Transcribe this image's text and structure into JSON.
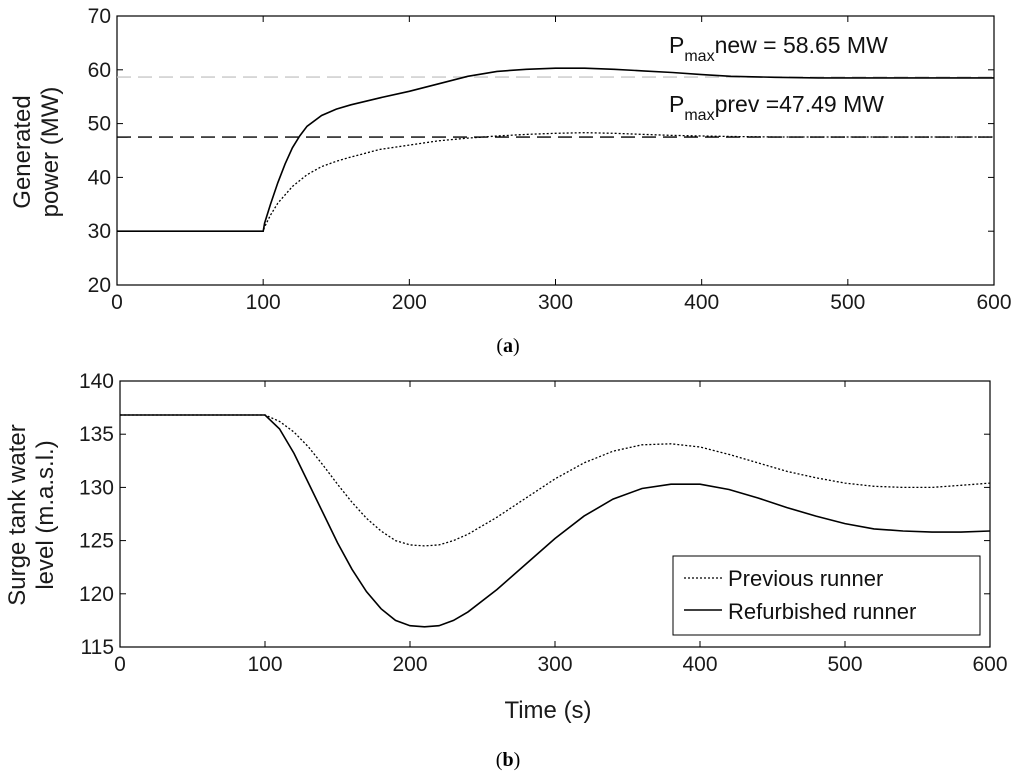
{
  "figure": {
    "panels": [
      {
        "label_open": "(",
        "label_letter": "a",
        "label_close": ")",
        "ylabel_lines": [
          "Generated",
          "power (MW)"
        ],
        "annotations": [
          {
            "main": "P",
            "sub": "max",
            "rest": "new = 58.65 MW"
          },
          {
            "main": "P",
            "sub": "max",
            "rest": "prev  =47.49 MW"
          }
        ]
      },
      {
        "label_open": "(",
        "label_letter": "b",
        "label_close": ")",
        "ylabel_lines": [
          "Surge tank water",
          "level (m.a.s.l.)"
        ],
        "xlabel": "Time (s)",
        "legend": [
          "Previous runner",
          "Refurbished runner"
        ]
      }
    ]
  },
  "chart_data": [
    {
      "type": "line",
      "xlabel": "",
      "ylabel": "Generated power (MW)",
      "xlim": [
        0,
        600
      ],
      "ylim": [
        20,
        70
      ],
      "xticks": [
        0,
        100,
        200,
        300,
        400,
        500,
        600
      ],
      "yticks": [
        20,
        30,
        40,
        50,
        60,
        70
      ],
      "grid": false,
      "series": [
        {
          "style": "dotted",
          "x": [
            0,
            100,
            101,
            105,
            110,
            120,
            130,
            140,
            150,
            160,
            180,
            200,
            220,
            240,
            260,
            280,
            300,
            320,
            340,
            360,
            380,
            400,
            420,
            450,
            480,
            500,
            520,
            540,
            560,
            580,
            600
          ],
          "y": [
            30,
            30,
            30.8,
            33,
            35.2,
            38.3,
            40.5,
            42,
            43,
            43.8,
            45.2,
            46,
            46.8,
            47.3,
            47.7,
            48,
            48.2,
            48.3,
            48.2,
            48,
            47.8,
            47.7,
            47.6,
            47.5,
            47.5,
            47.5,
            47.5,
            47.5,
            47.5,
            47.5,
            47.5
          ]
        },
        {
          "style": "solid",
          "x": [
            0,
            100,
            101,
            105,
            110,
            115,
            120,
            125,
            130,
            140,
            150,
            160,
            180,
            200,
            220,
            240,
            260,
            280,
            300,
            320,
            340,
            360,
            380,
            400,
            420,
            450,
            480,
            500,
            520,
            540,
            560,
            580,
            600
          ],
          "y": [
            30,
            30,
            31.5,
            35,
            39,
            42.5,
            45.5,
            47.7,
            49.5,
            51.5,
            52.7,
            53.5,
            54.8,
            56,
            57.4,
            58.8,
            59.7,
            60.1,
            60.3,
            60.3,
            60.1,
            59.8,
            59.5,
            59.1,
            58.8,
            58.6,
            58.5,
            58.5,
            58.5,
            58.5,
            58.5,
            58.5,
            58.5
          ]
        }
      ],
      "reference_lines": [
        {
          "y": 58.65,
          "style": "dashed",
          "color": "#c8c8c8"
        },
        {
          "y": 47.49,
          "style": "dashed",
          "color": "#000000"
        }
      ]
    },
    {
      "type": "line",
      "xlabel": "Time (s)",
      "ylabel": "Surge tank water level (m.a.s.l.)",
      "xlim": [
        0,
        600
      ],
      "ylim": [
        115,
        140
      ],
      "xticks": [
        0,
        100,
        200,
        300,
        400,
        500,
        600
      ],
      "yticks": [
        115,
        120,
        125,
        130,
        135,
        140
      ],
      "grid": false,
      "legend_position": "bottom-right",
      "series": [
        {
          "name": "Previous runner",
          "style": "dotted",
          "x": [
            0,
            100,
            110,
            120,
            130,
            140,
            150,
            160,
            170,
            180,
            190,
            200,
            210,
            220,
            230,
            240,
            260,
            280,
            300,
            320,
            340,
            360,
            380,
            400,
            420,
            440,
            460,
            480,
            500,
            520,
            540,
            560,
            580,
            600
          ],
          "y": [
            136.8,
            136.8,
            136.2,
            135.2,
            133.8,
            132.1,
            130.3,
            128.6,
            127.1,
            125.9,
            125,
            124.6,
            124.5,
            124.6,
            125,
            125.6,
            127.2,
            129,
            130.8,
            132.3,
            133.4,
            134,
            134.1,
            133.8,
            133.1,
            132.3,
            131.5,
            130.9,
            130.4,
            130.1,
            130,
            130,
            130.2,
            130.4
          ]
        },
        {
          "name": "Refurbished runner",
          "style": "solid",
          "x": [
            0,
            100,
            110,
            120,
            130,
            140,
            150,
            160,
            170,
            180,
            190,
            200,
            210,
            220,
            230,
            240,
            260,
            280,
            300,
            320,
            340,
            360,
            380,
            400,
            420,
            440,
            460,
            480,
            500,
            520,
            540,
            560,
            580,
            600
          ],
          "y": [
            136.8,
            136.8,
            135.5,
            133.2,
            130.4,
            127.6,
            124.8,
            122.3,
            120.2,
            118.6,
            117.5,
            117,
            116.9,
            117,
            117.5,
            118.3,
            120.4,
            122.8,
            125.2,
            127.3,
            128.9,
            129.9,
            130.3,
            130.3,
            129.8,
            129,
            128.1,
            127.3,
            126.6,
            126.1,
            125.9,
            125.8,
            125.8,
            125.9
          ]
        }
      ]
    }
  ]
}
